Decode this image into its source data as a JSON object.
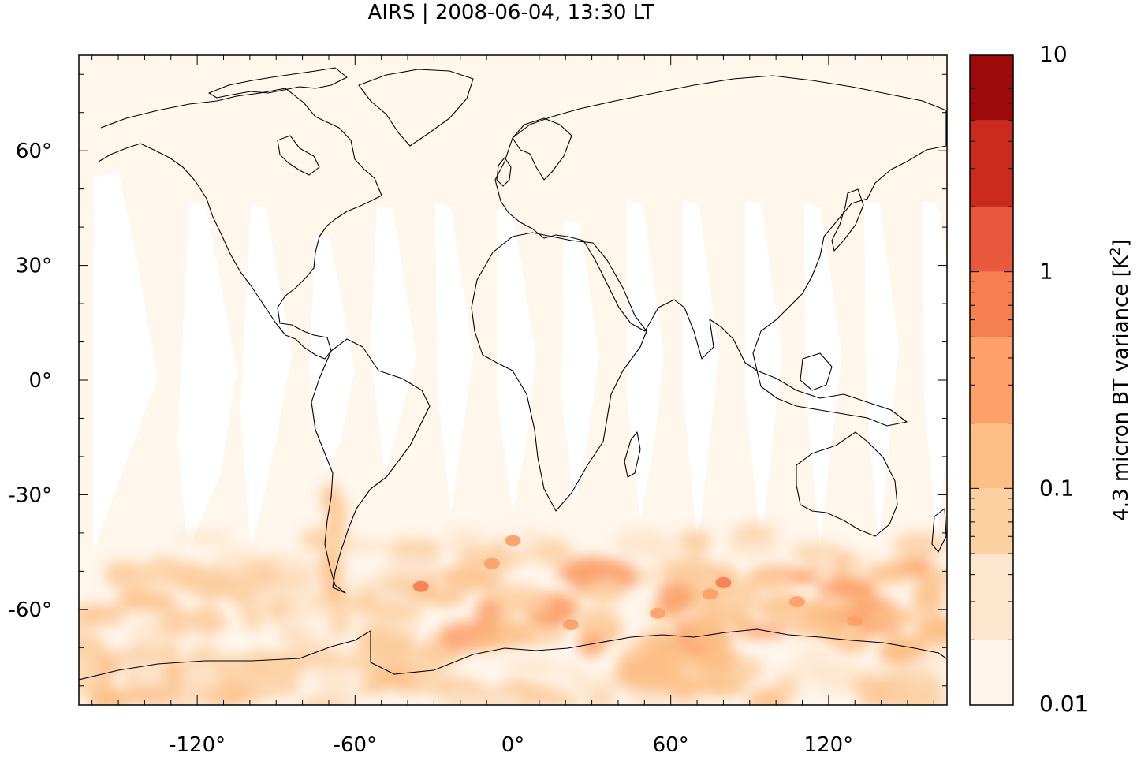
{
  "title": "AIRS | 2008-06-04, 13:30 LT",
  "map": {
    "background_color": "#fff6ec",
    "gap_color": "#ffffff",
    "x_ticks": [
      {
        "value": -120,
        "label": "-120°"
      },
      {
        "value": -60,
        "label": "-60°"
      },
      {
        "value": 0,
        "label": "0°"
      },
      {
        "value": 60,
        "label": "60°"
      },
      {
        "value": 120,
        "label": "120°"
      }
    ],
    "y_ticks": [
      {
        "value": 60,
        "label": "60°"
      },
      {
        "value": 30,
        "label": "30°"
      },
      {
        "value": 0,
        "label": "0°"
      },
      {
        "value": -30,
        "label": "-30°"
      },
      {
        "value": -60,
        "label": "-60°"
      }
    ],
    "x_range": [
      -165,
      165
    ],
    "y_range": [
      -85,
      85
    ]
  },
  "colorbar": {
    "label": "4.3 micron BT variance [K",
    "label_sup": "2",
    "label_end": "]",
    "tick_labels": [
      {
        "value": 10,
        "label": "10"
      },
      {
        "value": 1,
        "label": "1"
      },
      {
        "value": 0.1,
        "label": "0.1"
      },
      {
        "value": 0.01,
        "label": "0.01"
      }
    ],
    "levels": [
      0.01,
      0.02,
      0.05,
      0.1,
      0.2,
      0.5,
      1,
      2,
      5,
      10
    ],
    "colors": [
      "#fff5eb",
      "#fee6ce",
      "#fdd0a2",
      "#fdbf86",
      "#fda06a",
      "#f67f52",
      "#e9583d",
      "#cb2b1f",
      "#9f0a0a"
    ]
  }
}
